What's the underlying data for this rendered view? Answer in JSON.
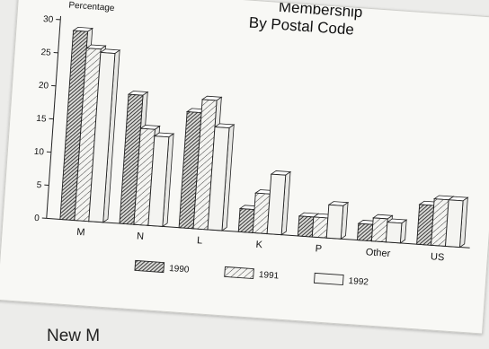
{
  "chart_data": {
    "type": "bar",
    "title": "Membership",
    "subtitle": "By Postal Code",
    "ylabel": "Percentage",
    "xlabel": "",
    "ylim": [
      0,
      30
    ],
    "yticks": [
      0,
      5,
      10,
      15,
      20,
      25,
      30
    ],
    "categories": [
      "M",
      "N",
      "L",
      "K",
      "P",
      "Other",
      "US"
    ],
    "series": [
      {
        "name": "1990",
        "values": [
          28.5,
          19.5,
          17.5,
          3.5,
          3.0,
          2.5,
          6.0
        ],
        "pattern": "dense-hatch"
      },
      {
        "name": "1991",
        "values": [
          26,
          14.5,
          19.5,
          6.0,
          3.0,
          3.5,
          7.0
        ],
        "pattern": "light-hatch"
      },
      {
        "name": "1992",
        "values": [
          25.5,
          13.5,
          15.5,
          9.0,
          5.0,
          3.0,
          7.0
        ],
        "pattern": "plain"
      }
    ],
    "legend_position": "bottom",
    "grid": false
  },
  "caption": "New M"
}
